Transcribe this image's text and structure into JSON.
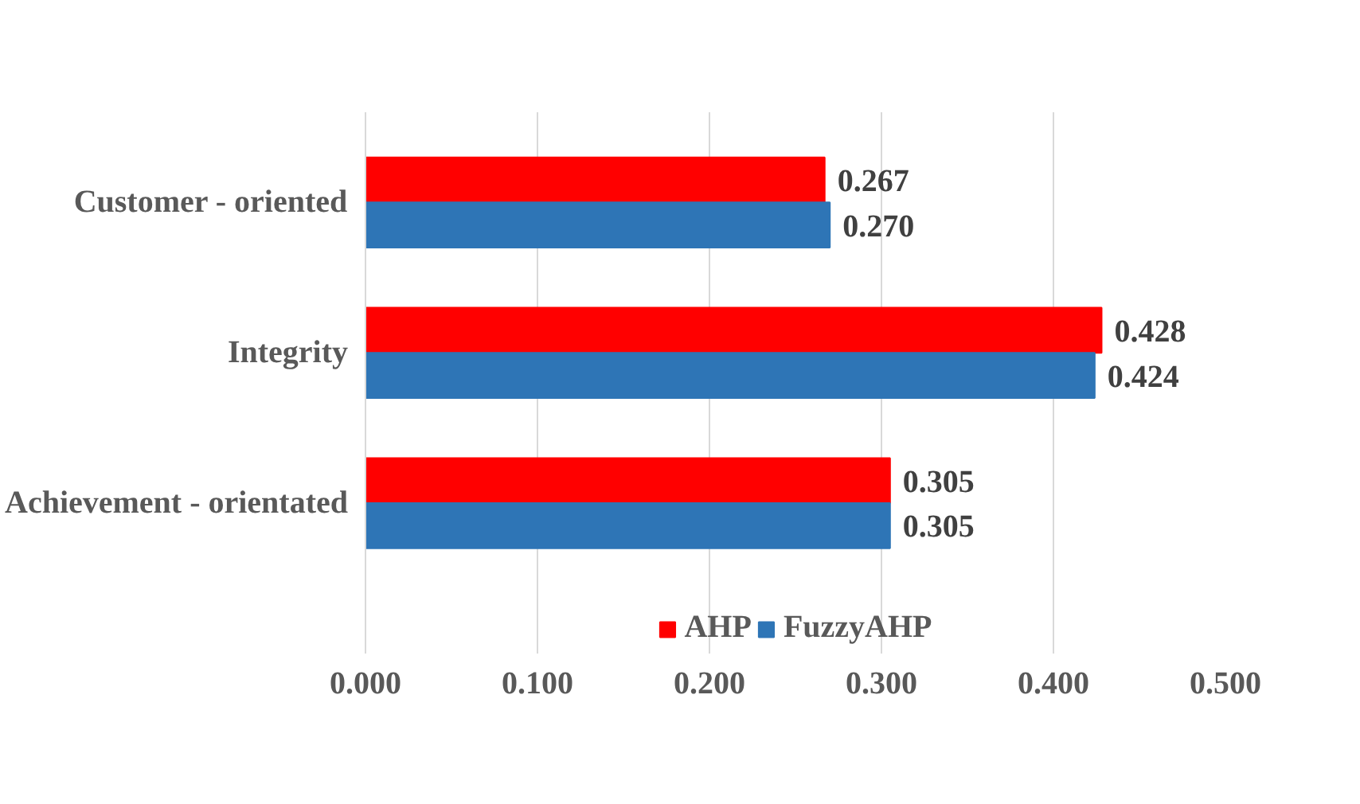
{
  "chart_data": {
    "type": "bar",
    "orientation": "horizontal",
    "categories": [
      "Customer - oriented",
      "Integrity",
      "Achievement - orientated"
    ],
    "series": [
      {
        "name": "AHP",
        "color": "#ff0000",
        "values": [
          0.267,
          0.428,
          0.305
        ],
        "value_labels": [
          "0.267",
          "0.428",
          "0.305"
        ]
      },
      {
        "name": "FuzzyAHP",
        "color": "#2e75b6",
        "values": [
          0.27,
          0.424,
          0.305
        ],
        "value_labels": [
          "0.270",
          "0.424",
          "0.305"
        ]
      }
    ],
    "xlim": [
      0,
      0.5
    ],
    "xticks": [
      {
        "value": 0,
        "label": "0.000"
      },
      {
        "value": 0.1,
        "label": "0.100"
      },
      {
        "value": 0.2,
        "label": "0.200"
      },
      {
        "value": 0.3,
        "label": "0.300"
      },
      {
        "value": 0.4,
        "label": "0.400"
      },
      {
        "value": 0.5,
        "label": "0.500"
      }
    ],
    "grid": "x",
    "legend": "bottom"
  }
}
